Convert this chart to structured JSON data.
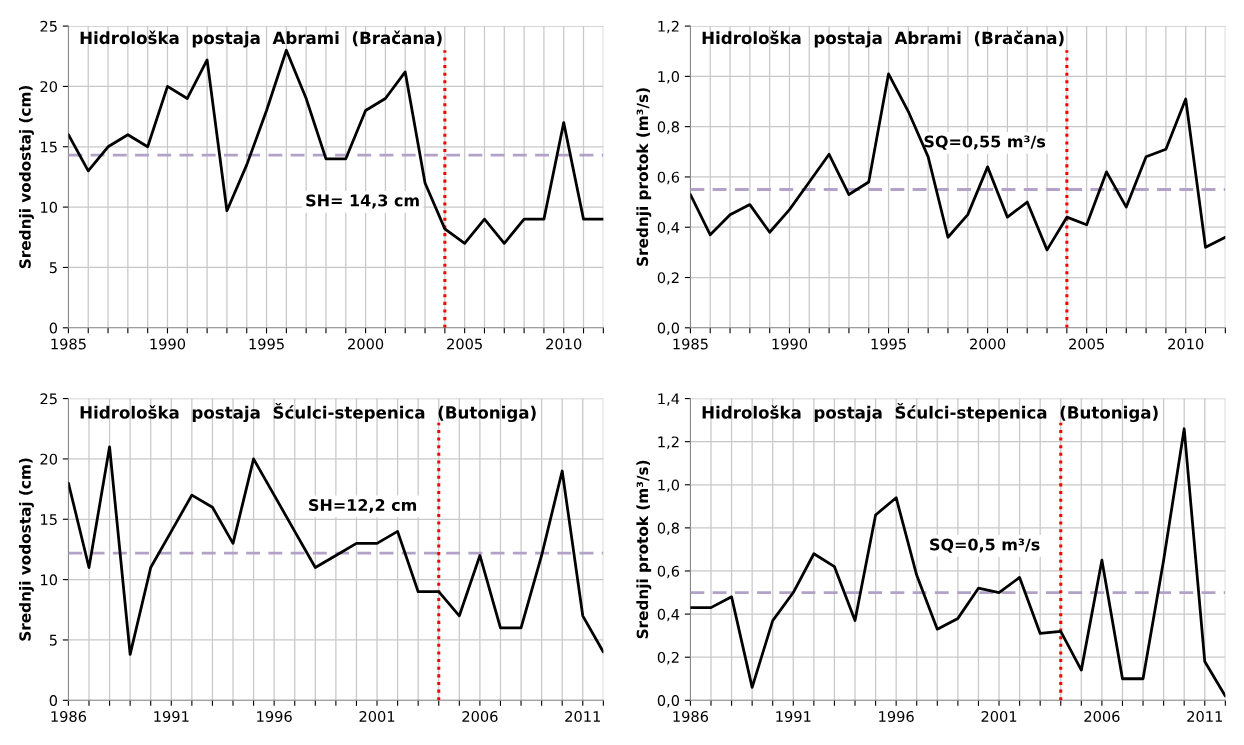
{
  "chart_data": [
    {
      "type": "line",
      "title": "Hidrološka  postaja  Abrami  (Bračana)",
      "ylabel": "Srednji vodostaj (cm)",
      "x": [
        1985,
        1986,
        1987,
        1988,
        1989,
        1990,
        1991,
        1992,
        1993,
        1994,
        1995,
        1996,
        1997,
        1998,
        1999,
        2000,
        2001,
        2002,
        2003,
        2004,
        2005,
        2006,
        2007,
        2008,
        2009,
        2010,
        2011,
        2012
      ],
      "series": [
        {
          "color": "#000000",
          "values": [
            16,
            13,
            15,
            16,
            15,
            20,
            19,
            22.2,
            9.7,
            13.5,
            18,
            23,
            19,
            14,
            14,
            18,
            19,
            21.2,
            12,
            8.2,
            7,
            9,
            7,
            9,
            9,
            17,
            9,
            9
          ]
        }
      ],
      "xlim": [
        1985,
        2012
      ],
      "xticks": [
        1985,
        {
          "value": 1986,
          "label": null
        },
        {
          "value": 1987,
          "label": null
        },
        {
          "value": 1988,
          "label": null
        },
        {
          "value": 1989,
          "label": null
        },
        1990,
        {
          "value": 1991,
          "label": null
        },
        {
          "value": 1992,
          "label": null
        },
        {
          "value": 1993,
          "label": null
        },
        {
          "value": 1994,
          "label": null
        },
        1995,
        {
          "value": 1996,
          "label": null
        },
        {
          "value": 1997,
          "label": null
        },
        {
          "value": 1998,
          "label": null
        },
        {
          "value": 1999,
          "label": null
        },
        2000,
        {
          "value": 2001,
          "label": null
        },
        {
          "value": 2002,
          "label": null
        },
        {
          "value": 2003,
          "label": null
        },
        {
          "value": 2004,
          "label": null
        },
        2005,
        {
          "value": 2006,
          "label": null
        },
        {
          "value": 2007,
          "label": null
        },
        {
          "value": 2008,
          "label": null
        },
        {
          "value": 2009,
          "label": null
        },
        2010,
        {
          "value": 2011,
          "label": null
        },
        {
          "value": 2012,
          "label": null
        }
      ],
      "ylim": [
        0,
        25
      ],
      "yticks": [
        0,
        5,
        10,
        15,
        20,
        25
      ],
      "ref_lines": [
        {
          "axis": "y",
          "value": 14.3,
          "label": "SH= 14,3 cm",
          "color": "#b3a2c7",
          "line_style": "dashed"
        },
        {
          "axis": "x",
          "value": 2004,
          "color": "#ff0000",
          "line_style": "dotted"
        }
      ],
      "grid": true,
      "line_style": "solid",
      "marker": "none"
    },
    {
      "type": "line",
      "title": "Hidrološka  postaja  Abrami  (Bračana)",
      "ylabel": "Srednji protok (m³/s)",
      "x": [
        1985,
        1986,
        1987,
        1988,
        1989,
        1990,
        1991,
        1992,
        1993,
        1994,
        1995,
        1996,
        1997,
        1998,
        1999,
        2000,
        2001,
        2002,
        2003,
        2004,
        2005,
        2006,
        2007,
        2008,
        2009,
        2010,
        2011,
        2012
      ],
      "series": [
        {
          "color": "#000000",
          "values": [
            0.53,
            0.37,
            0.45,
            0.49,
            0.38,
            0.47,
            0.58,
            0.69,
            0.53,
            0.58,
            1.01,
            0.86,
            0.68,
            0.36,
            0.45,
            0.64,
            0.44,
            0.5,
            0.31,
            0.44,
            0.41,
            0.62,
            0.48,
            0.68,
            0.71,
            0.91,
            0.32,
            0.36
          ]
        }
      ],
      "xlim": [
        1985,
        2012
      ],
      "xticks": [
        1985,
        {
          "value": 1986,
          "label": null
        },
        {
          "value": 1987,
          "label": null
        },
        {
          "value": 1988,
          "label": null
        },
        {
          "value": 1989,
          "label": null
        },
        1990,
        {
          "value": 1991,
          "label": null
        },
        {
          "value": 1992,
          "label": null
        },
        {
          "value": 1993,
          "label": null
        },
        {
          "value": 1994,
          "label": null
        },
        1995,
        {
          "value": 1996,
          "label": null
        },
        {
          "value": 1997,
          "label": null
        },
        {
          "value": 1998,
          "label": null
        },
        {
          "value": 1999,
          "label": null
        },
        2000,
        {
          "value": 2001,
          "label": null
        },
        {
          "value": 2002,
          "label": null
        },
        {
          "value": 2003,
          "label": null
        },
        {
          "value": 2004,
          "label": null
        },
        2005,
        {
          "value": 2006,
          "label": null
        },
        {
          "value": 2007,
          "label": null
        },
        {
          "value": 2008,
          "label": null
        },
        {
          "value": 2009,
          "label": null
        },
        2010,
        {
          "value": 2011,
          "label": null
        },
        {
          "value": 2012,
          "label": null
        }
      ],
      "ylim": [
        0,
        1.2
      ],
      "yticks": [
        {
          "value": 0,
          "label": "0,0"
        },
        {
          "value": 0.2,
          "label": "0,2"
        },
        {
          "value": 0.4,
          "label": "0,4"
        },
        {
          "value": 0.6,
          "label": "0,6"
        },
        {
          "value": 0.8,
          "label": "0,8"
        },
        {
          "value": 1.0,
          "label": "1,0"
        },
        {
          "value": 1.2,
          "label": "1,2"
        }
      ],
      "ref_lines": [
        {
          "axis": "y",
          "value": 0.55,
          "label": "SQ=0,55 m³/s",
          "color": "#b3a2c7",
          "line_style": "dashed"
        },
        {
          "axis": "x",
          "value": 2004,
          "color": "#ff0000",
          "line_style": "dotted"
        }
      ],
      "grid": true,
      "line_style": "solid",
      "marker": "none"
    },
    {
      "type": "line",
      "title": "Hidrološka  postaja  Šćulci-stepenica  (Butoniga)",
      "ylabel": "Srednji vodostaj (cm)",
      "x": [
        1986,
        1987,
        1988,
        1989,
        1990,
        1991,
        1992,
        1993,
        1994,
        1995,
        1996,
        1997,
        1998,
        1999,
        2000,
        2001,
        2002,
        2003,
        2004,
        2005,
        2006,
        2007,
        2008,
        2009,
        2010,
        2011,
        2012
      ],
      "series": [
        {
          "color": "#000000",
          "values": [
            18,
            11,
            21,
            3.8,
            11,
            14,
            17,
            16,
            13,
            20,
            17,
            14,
            11,
            12,
            13,
            13,
            14,
            9,
            9,
            7,
            12,
            6,
            6,
            12,
            19,
            7,
            4
          ]
        }
      ],
      "xlim": [
        1986,
        2012
      ],
      "xticks": [
        1986,
        {
          "value": 1987,
          "label": null
        },
        {
          "value": 1988,
          "label": null
        },
        {
          "value": 1989,
          "label": null
        },
        {
          "value": 1990,
          "label": null
        },
        1991,
        {
          "value": 1992,
          "label": null
        },
        {
          "value": 1993,
          "label": null
        },
        {
          "value": 1994,
          "label": null
        },
        {
          "value": 1995,
          "label": null
        },
        1996,
        {
          "value": 1997,
          "label": null
        },
        {
          "value": 1998,
          "label": null
        },
        {
          "value": 1999,
          "label": null
        },
        {
          "value": 2000,
          "label": null
        },
        2001,
        {
          "value": 2002,
          "label": null
        },
        {
          "value": 2003,
          "label": null
        },
        {
          "value": 2004,
          "label": null
        },
        {
          "value": 2005,
          "label": null
        },
        2006,
        {
          "value": 2007,
          "label": null
        },
        {
          "value": 2008,
          "label": null
        },
        {
          "value": 2009,
          "label": null
        },
        {
          "value": 2010,
          "label": null
        },
        2011,
        {
          "value": 2012,
          "label": null
        }
      ],
      "ylim": [
        0,
        25
      ],
      "yticks": [
        0,
        5,
        10,
        15,
        20,
        25
      ],
      "ref_lines": [
        {
          "axis": "y",
          "value": 12.2,
          "label": "SH=12,2 cm",
          "color": "#b3a2c7",
          "line_style": "dashed"
        },
        {
          "axis": "x",
          "value": 2004,
          "color": "#ff0000",
          "line_style": "dotted"
        }
      ],
      "grid": true,
      "line_style": "solid",
      "marker": "none"
    },
    {
      "type": "line",
      "title": "Hidrološka  postaja  Šćulci-stepenica  (Butoniga)",
      "ylabel": "Srednji protok (m³/s)",
      "x": [
        1986,
        1987,
        1988,
        1989,
        1990,
        1991,
        1992,
        1993,
        1994,
        1995,
        1996,
        1997,
        1998,
        1999,
        2000,
        2001,
        2002,
        2003,
        2004,
        2005,
        2006,
        2007,
        2008,
        2009,
        2010,
        2011,
        2012
      ],
      "series": [
        {
          "color": "#000000",
          "values": [
            0.43,
            0.43,
            0.48,
            0.06,
            0.37,
            0.5,
            0.68,
            0.62,
            0.37,
            0.86,
            0.94,
            0.58,
            0.33,
            0.38,
            0.52,
            0.5,
            0.57,
            0.31,
            0.32,
            0.14,
            0.65,
            0.1,
            0.1,
            0.65,
            1.26,
            0.18,
            0.02
          ]
        }
      ],
      "xlim": [
        1986,
        2012
      ],
      "xticks": [
        1986,
        {
          "value": 1987,
          "label": null
        },
        {
          "value": 1988,
          "label": null
        },
        {
          "value": 1989,
          "label": null
        },
        {
          "value": 1990,
          "label": null
        },
        1991,
        {
          "value": 1992,
          "label": null
        },
        {
          "value": 1993,
          "label": null
        },
        {
          "value": 1994,
          "label": null
        },
        {
          "value": 1995,
          "label": null
        },
        1996,
        {
          "value": 1997,
          "label": null
        },
        {
          "value": 1998,
          "label": null
        },
        {
          "value": 1999,
          "label": null
        },
        {
          "value": 2000,
          "label": null
        },
        2001,
        {
          "value": 2002,
          "label": null
        },
        {
          "value": 2003,
          "label": null
        },
        {
          "value": 2004,
          "label": null
        },
        {
          "value": 2005,
          "label": null
        },
        2006,
        {
          "value": 2007,
          "label": null
        },
        {
          "value": 2008,
          "label": null
        },
        {
          "value": 2009,
          "label": null
        },
        {
          "value": 2010,
          "label": null
        },
        2011,
        {
          "value": 2012,
          "label": null
        }
      ],
      "ylim": [
        0,
        1.4
      ],
      "yticks": [
        {
          "value": 0,
          "label": "0,0"
        },
        {
          "value": 0.2,
          "label": "0,2"
        },
        {
          "value": 0.4,
          "label": "0,4"
        },
        {
          "value": 0.6,
          "label": "0,6"
        },
        {
          "value": 0.8,
          "label": "0,8"
        },
        {
          "value": 1.0,
          "label": "1,0"
        },
        {
          "value": 1.2,
          "label": "1,2"
        },
        {
          "value": 1.4,
          "label": "1,4"
        }
      ],
      "ref_lines": [
        {
          "axis": "y",
          "value": 0.5,
          "label": "SQ=0,5 m³/s",
          "color": "#b3a2c7",
          "line_style": "dashed"
        },
        {
          "axis": "x",
          "value": 2004,
          "color": "#ff0000",
          "line_style": "dotted"
        }
      ],
      "grid": true,
      "line_style": "solid",
      "marker": "none"
    }
  ]
}
